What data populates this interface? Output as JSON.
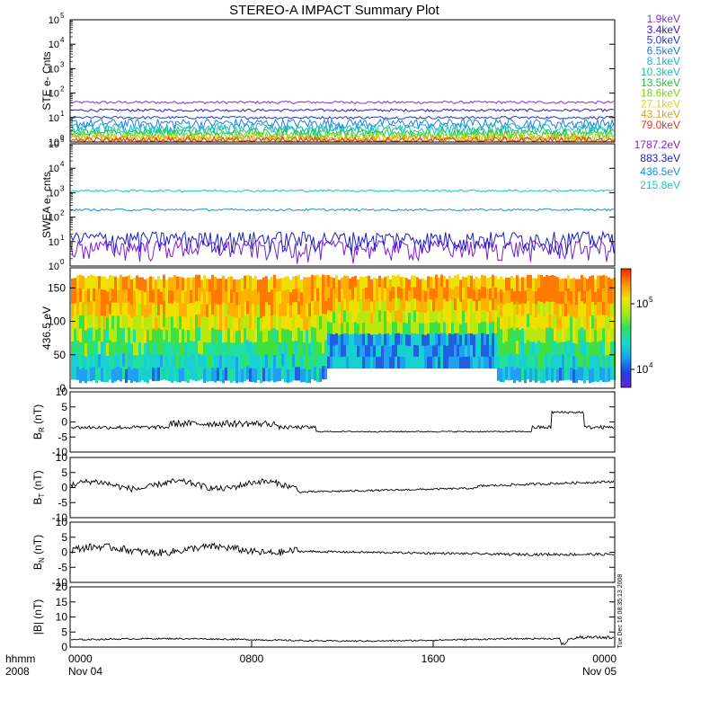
{
  "title": "STEREO-A IMPACT Summary Plot",
  "stamp": "Tue Dec 16 08:35:13 2008",
  "colorbar": {
    "ticks": [
      {
        "base": "10",
        "exp": "5"
      },
      {
        "base": "10",
        "exp": "4"
      }
    ]
  },
  "chart_data": [
    {
      "type": "line",
      "name": "ste",
      "ylabel": "STE e- Cnts",
      "yscale": "log",
      "ylim": [
        1,
        100000
      ],
      "yticks": [
        {
          "base": "10",
          "exp": "5"
        },
        {
          "base": "10",
          "exp": "4"
        },
        {
          "base": "10",
          "exp": "3"
        },
        {
          "base": "10",
          "exp": "2"
        },
        {
          "base": "10",
          "exp": "1"
        },
        {
          "base": "10",
          "exp": "0"
        }
      ],
      "series": [
        {
          "name": "1.9keV",
          "color": "#8a2be2",
          "level": 42
        },
        {
          "name": "3.4keV",
          "color": "#3a18b8",
          "level": 20
        },
        {
          "name": "5.0keV",
          "color": "#1c3ccf",
          "level": 10
        },
        {
          "name": "6.5keV",
          "color": "#1e7fe0",
          "level": 6
        },
        {
          "name": "8.1keV",
          "color": "#18b6d8",
          "level": 4
        },
        {
          "name": "10.3keV",
          "color": "#17c7a0",
          "level": 3
        },
        {
          "name": "13.5keV",
          "color": "#19c63a",
          "level": 2.3
        },
        {
          "name": "18.6keV",
          "color": "#7ed317",
          "level": 1.8
        },
        {
          "name": "27.1keV",
          "color": "#d9d410",
          "level": 1.5
        },
        {
          "name": "43.1keV",
          "color": "#f29a12",
          "level": 1.3
        },
        {
          "name": "79.0keV",
          "color": "#e8321a",
          "level": 1.1
        }
      ]
    },
    {
      "type": "line",
      "name": "swea",
      "ylabel": "SWEA e- cnts",
      "yscale": "log",
      "ylim": [
        1,
        100000
      ],
      "yticks": [
        {
          "base": "10",
          "exp": "5"
        },
        {
          "base": "10",
          "exp": "4"
        },
        {
          "base": "10",
          "exp": "3"
        },
        {
          "base": "10",
          "exp": "2"
        },
        {
          "base": "10",
          "exp": "1"
        },
        {
          "base": "10",
          "exp": "0"
        }
      ],
      "series": [
        {
          "name": "1787.2eV",
          "color": "#7a1fd8",
          "level": 6
        },
        {
          "name": "883.3eV",
          "color": "#2020c0",
          "level": 14
        },
        {
          "name": "436.5eV",
          "color": "#1a8ee0",
          "level": 200
        },
        {
          "name": "215.8eV",
          "color": "#17c8c0",
          "level": 1200
        }
      ]
    },
    {
      "type": "heatmap",
      "name": "pad",
      "ylabel": "436.5 eV",
      "ylim": [
        0,
        180
      ],
      "yticks": [
        "150",
        "100",
        "50",
        "0"
      ]
    },
    {
      "type": "line",
      "name": "br",
      "ylabel": "B_R (nT)",
      "ylim": [
        -10,
        10
      ],
      "yticks": [
        "10",
        "5",
        "0",
        "-5",
        "-10"
      ]
    },
    {
      "type": "line",
      "name": "bt",
      "ylabel": "B_T (nT)",
      "ylim": [
        -10,
        10
      ],
      "yticks": [
        "10",
        "5",
        "0",
        "-5",
        "-10"
      ]
    },
    {
      "type": "line",
      "name": "bn",
      "ylabel": "B_N (nT)",
      "ylim": [
        -10,
        10
      ],
      "yticks": [
        "10",
        "5",
        "0",
        "-5",
        "-10"
      ]
    },
    {
      "type": "line",
      "name": "bmag",
      "ylabel": "|B| (nT)",
      "ylim": [
        0,
        20
      ],
      "yticks": [
        "20",
        "15",
        "10",
        "5",
        "0"
      ]
    }
  ],
  "xaxis": {
    "lines1": [
      "hhmm",
      "0000",
      "0800",
      "1600",
      "0000"
    ],
    "lines2": [
      "2008",
      "Nov 04",
      "Nov 05"
    ]
  }
}
